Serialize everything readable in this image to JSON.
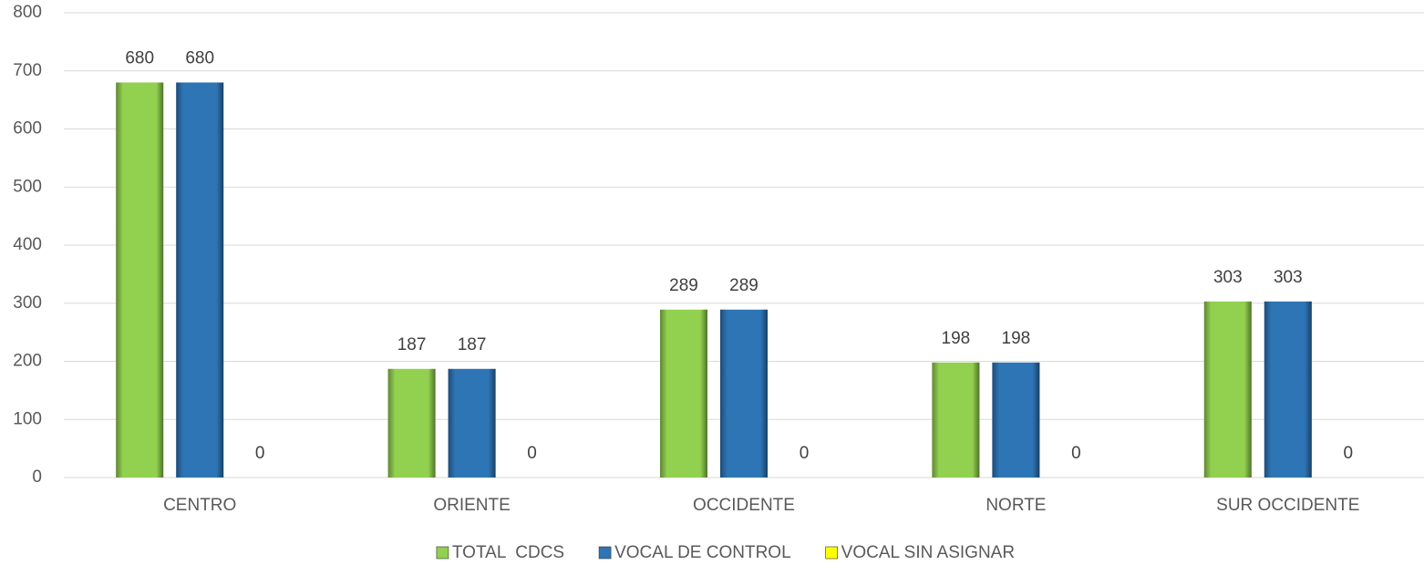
{
  "chart_data": {
    "type": "bar",
    "categories": [
      "CENTRO",
      "ORIENTE",
      "OCCIDENTE",
      "NORTE",
      "SUR OCCIDENTE"
    ],
    "series": [
      {
        "name": "TOTAL  CDCS",
        "color": "#92d050",
        "values": [
          680,
          187,
          289,
          198,
          303
        ]
      },
      {
        "name": "VOCAL DE CONTROL",
        "color": "#2e75b6",
        "values": [
          680,
          187,
          289,
          198,
          303
        ]
      },
      {
        "name": "VOCAL SIN ASIGNAR",
        "color": "#ffff00",
        "values": [
          0,
          0,
          0,
          0,
          0
        ]
      }
    ],
    "ylim": [
      0,
      800
    ],
    "yticks": [
      0,
      100,
      200,
      300,
      400,
      500,
      600,
      700,
      800
    ],
    "grid": true,
    "legend": "bottom"
  }
}
